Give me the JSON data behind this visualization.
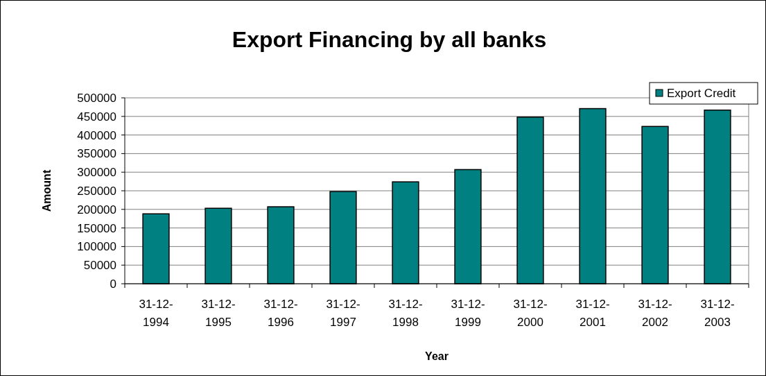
{
  "chart_data": {
    "type": "bar",
    "title": "Export Financing by all banks",
    "xlabel": "Year",
    "ylabel": "Amount",
    "categories": [
      "31-12-1994",
      "31-12-1995",
      "31-12-1996",
      "31-12-1997",
      "31-12-1998",
      "31-12-1999",
      "31-12-2000",
      "31-12-2001",
      "31-12-2002",
      "31-12-2003"
    ],
    "series": [
      {
        "name": "Export Credit",
        "color": "#008080",
        "values": [
          188000,
          203000,
          207000,
          248000,
          274000,
          307000,
          448000,
          471000,
          423000,
          467000
        ]
      }
    ],
    "ylim": [
      0,
      500000
    ],
    "yticks": [
      0,
      50000,
      100000,
      150000,
      200000,
      250000,
      300000,
      350000,
      400000,
      450000,
      500000
    ],
    "grid": "y",
    "legend": "top right"
  }
}
